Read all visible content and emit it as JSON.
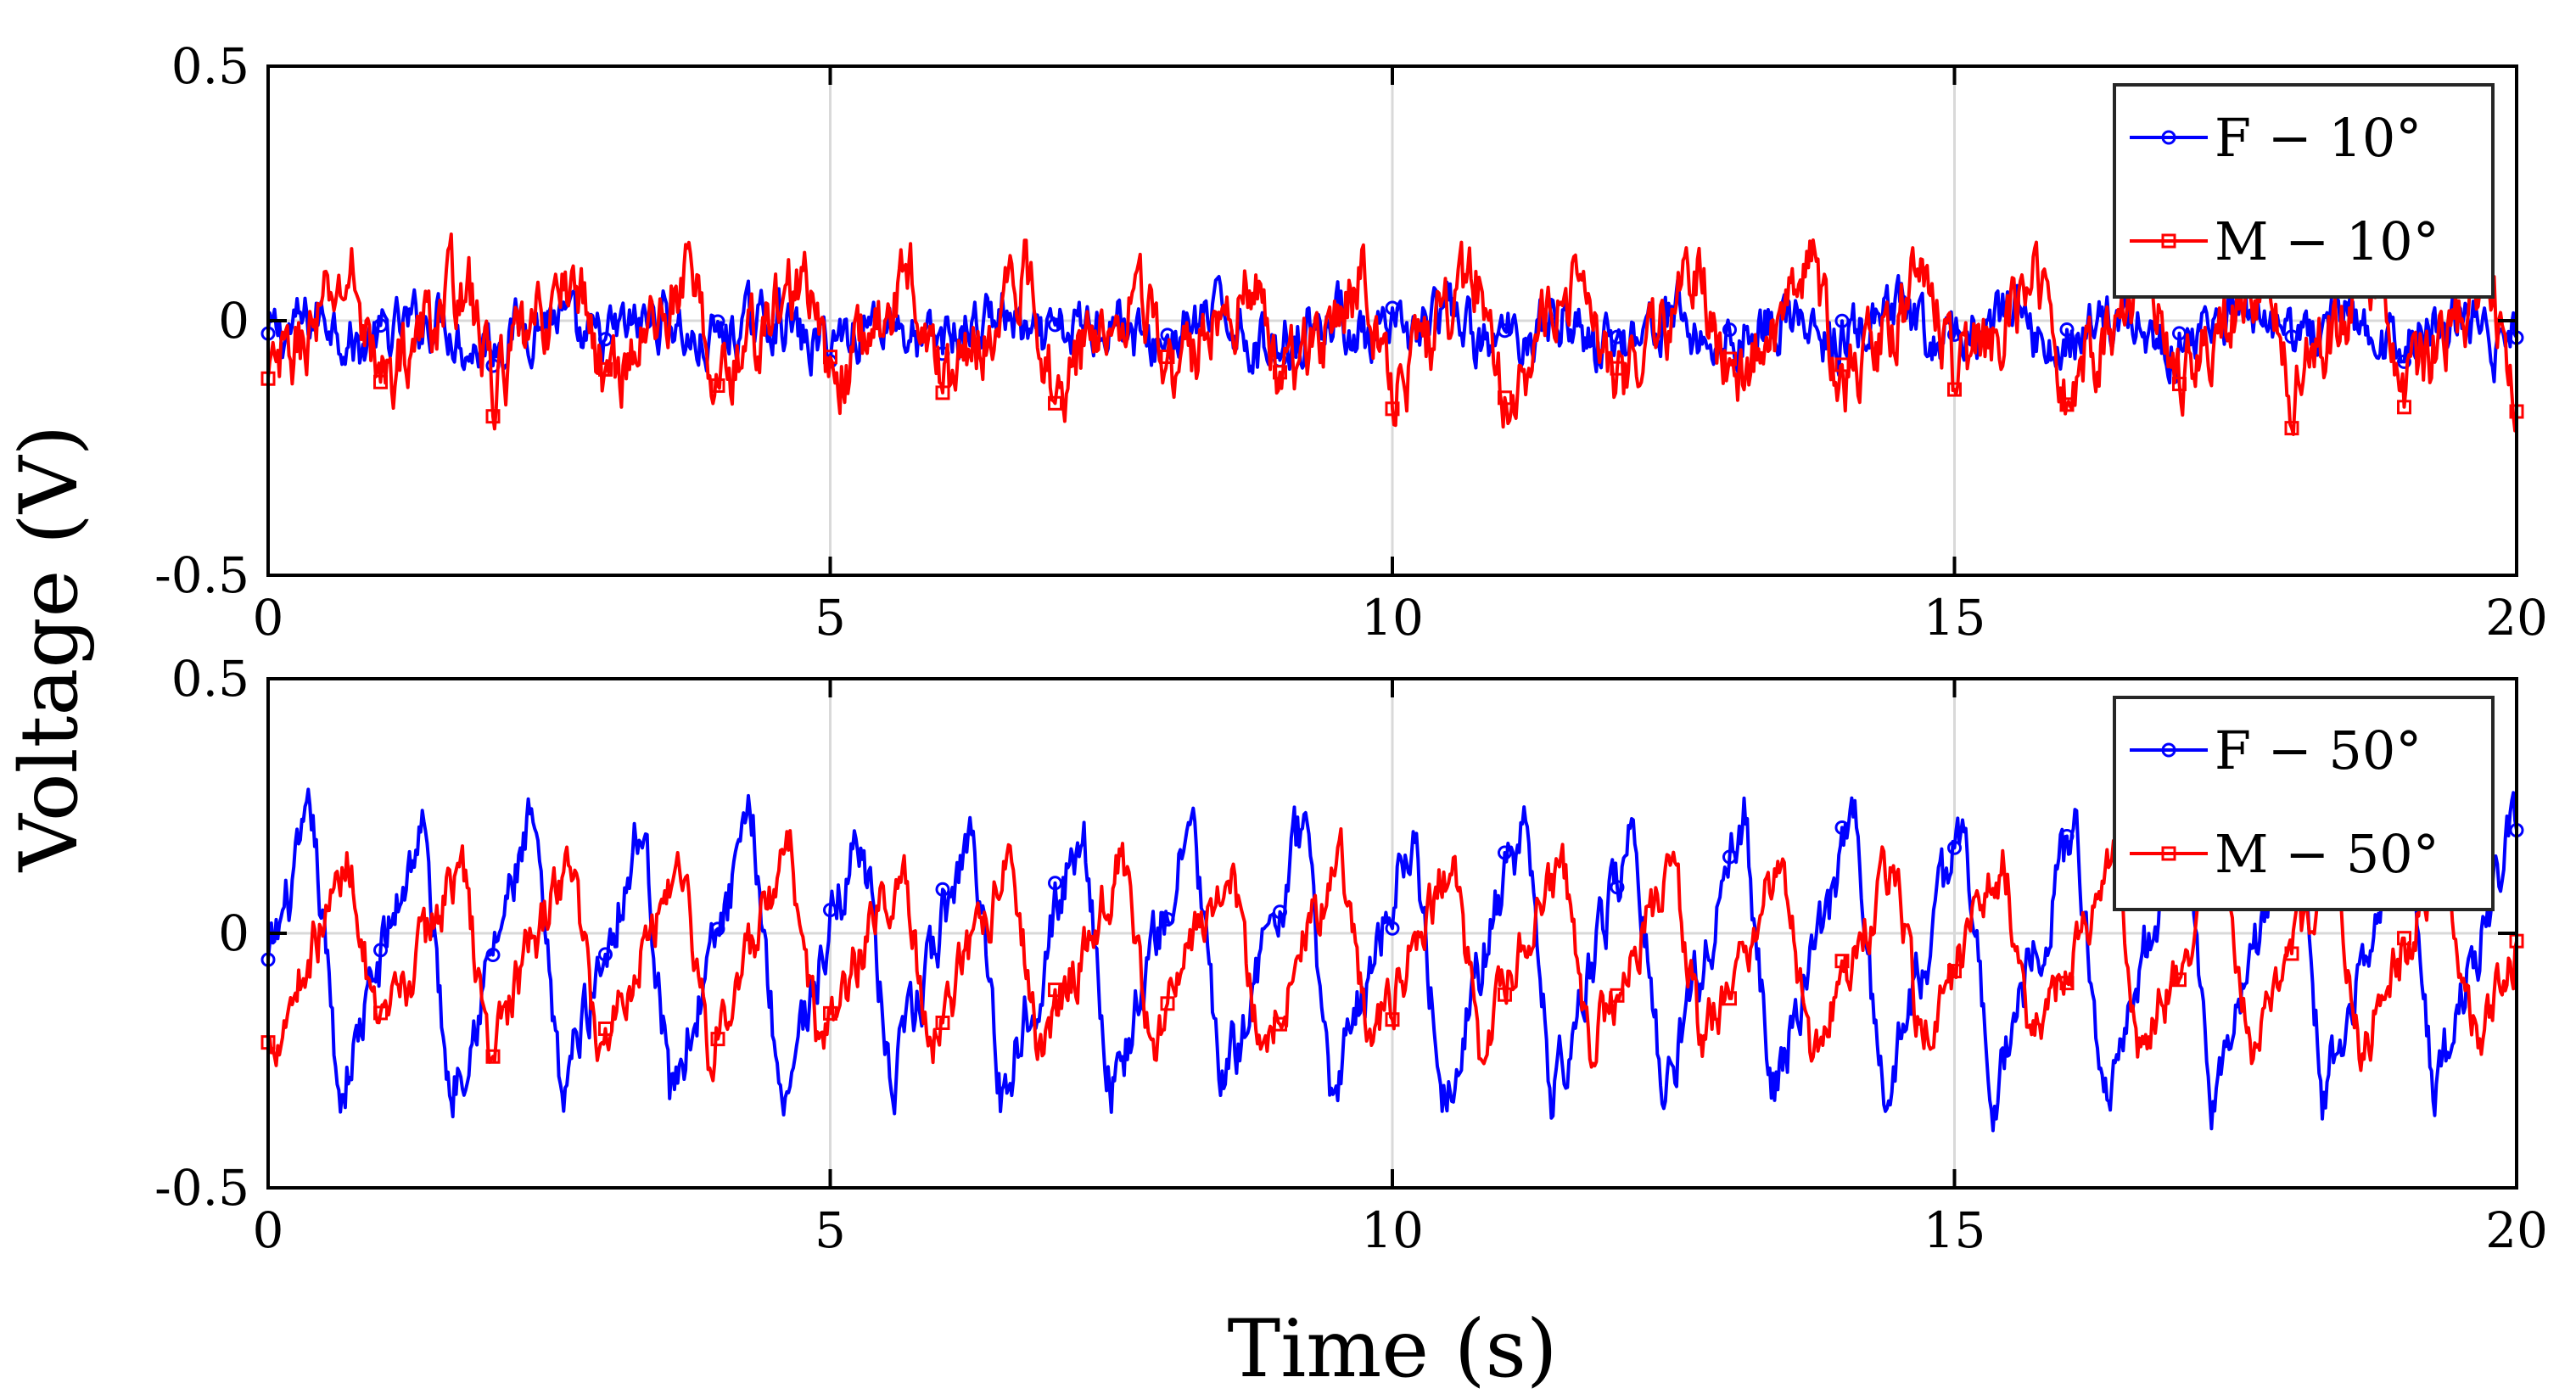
{
  "figure": {
    "ylabel": "Voltage (V)",
    "xlabel": "Time (s)"
  },
  "chart_data": [
    {
      "type": "line",
      "xlim": [
        0,
        20
      ],
      "ylim": [
        -0.5,
        0.5
      ],
      "xticks": [
        "0",
        "5",
        "10",
        "15",
        "20"
      ],
      "yticks": [
        "-0.5",
        "0",
        "0.5"
      ],
      "grid": true,
      "legend_position": "top-right",
      "series": [
        {
          "name": "F − 10°",
          "color": "#0000ff",
          "marker": "circle",
          "period": 1.0,
          "amplitude": 0.035,
          "offset": -0.02,
          "noise": 0.045,
          "marker_every": 1.0,
          "phase": 0.2
        },
        {
          "name": "M − 10°",
          "color": "#ff0000",
          "marker": "square",
          "period": 1.0,
          "amplitude": 0.11,
          "offset": -0.02,
          "noise": 0.06,
          "marker_every": 1.0,
          "phase": 0.0
        }
      ]
    },
    {
      "type": "line",
      "xlim": [
        0,
        20
      ],
      "ylim": [
        -0.5,
        0.5
      ],
      "xticks": [
        "0",
        "5",
        "10",
        "15",
        "20"
      ],
      "yticks": [
        "-0.5",
        "0",
        "0.5"
      ],
      "grid": true,
      "legend_position": "top-right",
      "series": [
        {
          "name": "F − 50°",
          "color": "#0000ff",
          "marker": "circle",
          "period": 0.98,
          "amplitude": 0.27,
          "offset": -0.05,
          "noise": 0.05,
          "marker_every": 1.0,
          "phase": 0.35
        },
        {
          "name": "M − 50°",
          "color": "#ff0000",
          "marker": "square",
          "period": 0.98,
          "amplitude": 0.19,
          "offset": -0.04,
          "noise": 0.045,
          "marker_every": 1.0,
          "phase": 0.0
        }
      ]
    }
  ]
}
